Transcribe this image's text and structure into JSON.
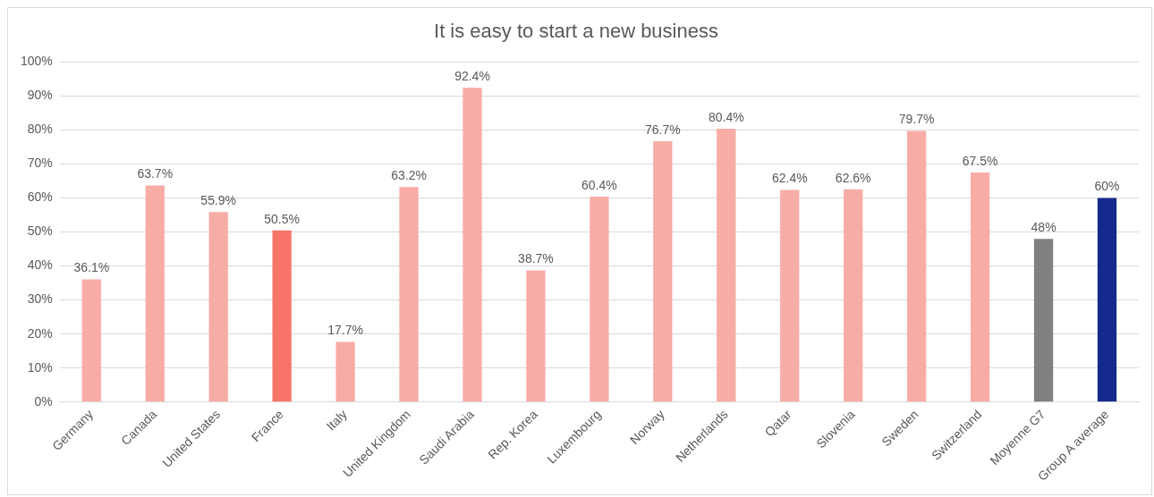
{
  "chart_data": {
    "type": "bar",
    "title": "It is easy to start a new business",
    "categories": [
      "Germany",
      "Canada",
      "United States",
      "France",
      "Italy",
      "United Kingdom",
      "Saudi Arabia",
      "Rep. Korea",
      "Luxembourg",
      "Norway",
      "Netherlands",
      "Qatar",
      "Slovenia",
      "Sweden",
      "Switzerland",
      "Moyenne G7",
      "Group A average"
    ],
    "values": [
      36.1,
      63.7,
      55.9,
      50.5,
      17.7,
      63.2,
      92.4,
      38.7,
      60.4,
      76.7,
      80.4,
      62.4,
      62.6,
      79.7,
      67.5,
      48,
      60
    ],
    "value_labels": [
      "36.1%",
      "63.7%",
      "55.9%",
      "50.5%",
      "17.7%",
      "63.2%",
      "92.4%",
      "38.7%",
      "60.4%",
      "76.7%",
      "80.4%",
      "62.4%",
      "62.6%",
      "79.7%",
      "67.5%",
      "48%",
      "60%"
    ],
    "colors": [
      "#f8aca6",
      "#f8aca6",
      "#f8aca6",
      "#f87468",
      "#f8aca6",
      "#f8aca6",
      "#f8aca6",
      "#f8aca6",
      "#f8aca6",
      "#f8aca6",
      "#f8aca6",
      "#f8aca6",
      "#f8aca6",
      "#f8aca6",
      "#f8aca6",
      "#808080",
      "#152a8c"
    ],
    "ylim": [
      0,
      100
    ],
    "yticks": [
      {
        "value": 0,
        "label": "0%"
      },
      {
        "value": 10,
        "label": "10%"
      },
      {
        "value": 20,
        "label": "20%"
      },
      {
        "value": 30,
        "label": "30%"
      },
      {
        "value": 40,
        "label": "40%"
      },
      {
        "value": 50,
        "label": "50%"
      },
      {
        "value": 60,
        "label": "60%"
      },
      {
        "value": 70,
        "label": "70%"
      },
      {
        "value": 80,
        "label": "80%"
      },
      {
        "value": 90,
        "label": "90%"
      },
      {
        "value": 100,
        "label": "100%"
      }
    ],
    "grid": "y",
    "legend": false
  }
}
